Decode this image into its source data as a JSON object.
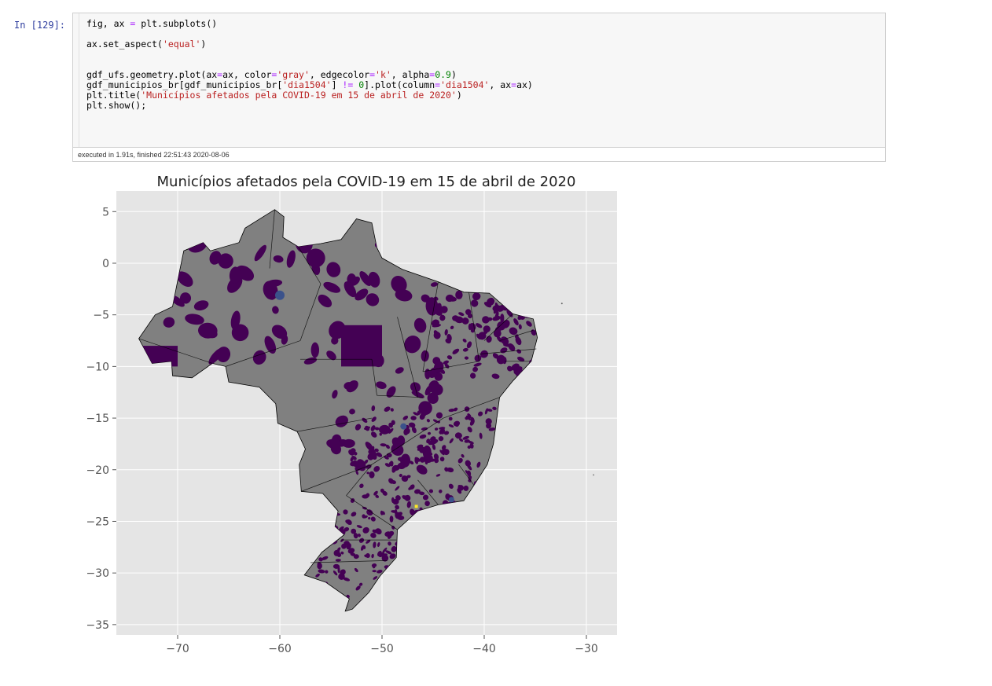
{
  "prompt": "In [129]:",
  "code_lines": [
    "fig, ax = plt.subplots()",
    "",
    "ax.set_aspect('equal')",
    "",
    "",
    "gdf_ufs.geometry.plot(ax=ax, color='gray', edgecolor='k', alpha=0.9)",
    "gdf_municipios_br[gdf_municipios_br['dia1504'] != 0].plot(column='dia1504', ax=ax)",
    "plt.title('Municípios afetados pela COVID-19 em 15 de abril de 2020')",
    "plt.show();"
  ],
  "exec_info": "executed in 1.91s, finished 22:51:43 2020-08-06",
  "chart_data": {
    "type": "map",
    "title": "Municípios afetados pela COVID-19 em 15 de abril de 2020",
    "xlim": [
      -76,
      -27
    ],
    "ylim": [
      -36,
      7
    ],
    "xticks": [
      -70,
      -60,
      -50,
      -40,
      -30
    ],
    "yticks": [
      5,
      0,
      -5,
      -10,
      -15,
      -20,
      -25,
      -30,
      -35
    ],
    "xtick_labels": [
      "−70",
      "−60",
      "−50",
      "−40",
      "−30"
    ],
    "ytick_labels": [
      "5",
      "0",
      "−5",
      "−10",
      "−15",
      "−20",
      "−25",
      "−30",
      "−35"
    ],
    "grid": true,
    "background_color": "#e5e5e5",
    "state_fill_color": "#808080",
    "edge_color": "#000000",
    "municipality_color": "#440154",
    "highlight_colors": [
      "#3b528b",
      "#fde725"
    ],
    "outline": [
      [
        -73.8,
        -7.3
      ],
      [
        -72.2,
        -5.0
      ],
      [
        -70.5,
        -4.2
      ],
      [
        -69.9,
        -1.2
      ],
      [
        -69.4,
        1.2
      ],
      [
        -67.5,
        2.0
      ],
      [
        -66.8,
        1.2
      ],
      [
        -64.0,
        2.0
      ],
      [
        -63.4,
        3.4
      ],
      [
        -60.5,
        5.2
      ],
      [
        -59.6,
        4.5
      ],
      [
        -59.7,
        2.5
      ],
      [
        -58.2,
        1.6
      ],
      [
        -56.0,
        1.9
      ],
      [
        -54.0,
        2.3
      ],
      [
        -52.5,
        4.3
      ],
      [
        -51.0,
        3.9
      ],
      [
        -50.5,
        1.5
      ],
      [
        -50.0,
        0.5
      ],
      [
        -48.0,
        -0.6
      ],
      [
        -44.5,
        -1.8
      ],
      [
        -42.0,
        -2.8
      ],
      [
        -39.5,
        -2.9
      ],
      [
        -37.2,
        -4.9
      ],
      [
        -35.2,
        -5.4
      ],
      [
        -34.8,
        -7.2
      ],
      [
        -35.4,
        -9.5
      ],
      [
        -37.2,
        -11.4
      ],
      [
        -38.5,
        -13.0
      ],
      [
        -39.1,
        -17.5
      ],
      [
        -39.7,
        -19.5
      ],
      [
        -41.0,
        -21.5
      ],
      [
        -42.0,
        -23.0
      ],
      [
        -44.5,
        -23.4
      ],
      [
        -46.5,
        -24.0
      ],
      [
        -48.5,
        -25.8
      ],
      [
        -48.6,
        -28.5
      ],
      [
        -50.2,
        -30.3
      ],
      [
        -51.3,
        -31.9
      ],
      [
        -52.9,
        -33.5
      ],
      [
        -53.6,
        -33.7
      ],
      [
        -53.2,
        -32.5
      ],
      [
        -55.5,
        -30.9
      ],
      [
        -57.6,
        -30.2
      ],
      [
        -55.9,
        -28.0
      ],
      [
        -53.7,
        -26.3
      ],
      [
        -54.6,
        -25.5
      ],
      [
        -54.3,
        -24.0
      ],
      [
        -55.8,
        -22.3
      ],
      [
        -57.9,
        -22.1
      ],
      [
        -58.1,
        -19.5
      ],
      [
        -57.5,
        -18.0
      ],
      [
        -58.3,
        -16.3
      ],
      [
        -60.2,
        -15.5
      ],
      [
        -60.4,
        -13.6
      ],
      [
        -62.0,
        -12.0
      ],
      [
        -65.0,
        -11.5
      ],
      [
        -65.3,
        -10.0
      ],
      [
        -66.6,
        -9.7
      ],
      [
        -68.6,
        -11.1
      ],
      [
        -70.5,
        -10.9
      ],
      [
        -70.6,
        -9.5
      ],
      [
        -72.5,
        -9.7
      ],
      [
        -73.8,
        -7.3
      ]
    ]
  }
}
